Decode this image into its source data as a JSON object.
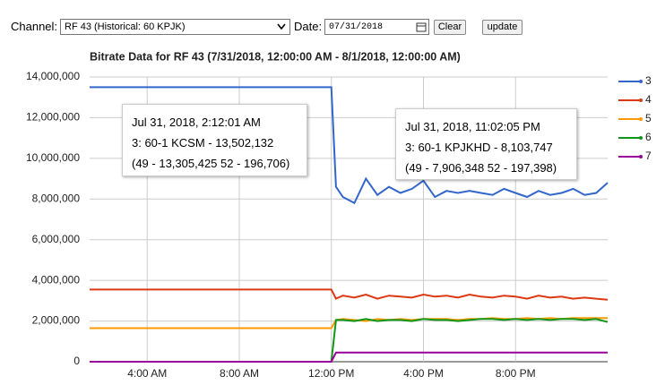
{
  "controls": {
    "channel_label": "Channel:",
    "channel_value": "RF 43 (Historical: 60 KPJK)",
    "date_label": "Date:",
    "date_value": "07/31/2018",
    "clear_button": "Clear",
    "update_button": "update"
  },
  "chart_data": {
    "type": "line",
    "title": "Bitrate Data for RF 43 (7/31/2018, 12:00:00 AM - 8/1/2018, 12:00:00 AM)",
    "x": [
      1.5,
      12,
      12.2,
      12.5,
      13,
      13.5,
      14,
      14.5,
      15,
      15.5,
      16,
      16.5,
      17,
      17.5,
      18,
      18.5,
      19,
      19.5,
      20,
      20.5,
      21,
      21.5,
      22,
      22.5,
      23,
      23.5,
      24
    ],
    "series": [
      {
        "name": "3",
        "color": "#3366cc",
        "values": [
          13500000,
          13500000,
          8600000,
          8100000,
          7800000,
          9000000,
          8200000,
          8600000,
          8300000,
          8500000,
          8900000,
          8100000,
          8400000,
          8300000,
          8400000,
          8300000,
          8200000,
          8500000,
          8300000,
          8100000,
          8400000,
          8200000,
          8300000,
          8500000,
          8200000,
          8300000,
          8800000
        ]
      },
      {
        "name": "4",
        "color": "#dc3912",
        "values": [
          3550000,
          3550000,
          3100000,
          3250000,
          3150000,
          3300000,
          3100000,
          3250000,
          3200000,
          3150000,
          3300000,
          3200000,
          3250000,
          3150000,
          3300000,
          3200000,
          3150000,
          3250000,
          3200000,
          3100000,
          3250000,
          3150000,
          3200000,
          3100000,
          3150000,
          3100000,
          3050000
        ]
      },
      {
        "name": "5",
        "color": "#ff9900",
        "values": [
          1650000,
          1650000,
          2050000,
          2100000,
          2050000,
          2000000,
          2100000,
          2050000,
          2100000,
          2050000,
          2100000,
          2100000,
          2100000,
          2050000,
          2100000,
          2100000,
          2150000,
          2100000,
          2100000,
          2150000,
          2100000,
          2150000,
          2100000,
          2150000,
          2150000,
          2150000,
          2150000
        ]
      },
      {
        "name": "6",
        "color": "#109618",
        "values": [
          0,
          0,
          2050000,
          2050000,
          2000000,
          2100000,
          2000000,
          2050000,
          2050000,
          2000000,
          2100000,
          2050000,
          2050000,
          2000000,
          2050000,
          2100000,
          2100000,
          2050000,
          2100000,
          2050000,
          2100000,
          2050000,
          2100000,
          2100000,
          2050000,
          2100000,
          1950000
        ]
      },
      {
        "name": "7",
        "color": "#990099",
        "values": [
          0,
          0,
          450000,
          450000,
          450000,
          450000,
          450000,
          450000,
          450000,
          450000,
          450000,
          450000,
          450000,
          450000,
          450000,
          450000,
          450000,
          450000,
          450000,
          450000,
          450000,
          450000,
          450000,
          450000,
          450000,
          450000,
          450000
        ]
      }
    ],
    "xlim": [
      1.5,
      24
    ],
    "xticks": [
      {
        "value": 4,
        "label": "4:00 AM"
      },
      {
        "value": 8,
        "label": "8:00 AM"
      },
      {
        "value": 12,
        "label": "12:00 PM"
      },
      {
        "value": 16,
        "label": "4:00 PM"
      },
      {
        "value": 20,
        "label": "8:00 PM"
      }
    ],
    "ylim": [
      0,
      14000000
    ],
    "yticks": [
      0,
      {
        "value": 2000000,
        "label": "2,000,000"
      },
      {
        "value": 4000000,
        "label": "4,000,000"
      },
      {
        "value": 6000000,
        "label": "6,000,000"
      },
      {
        "value": 8000000,
        "label": "8,000,000"
      },
      {
        "value": 10000000,
        "label": "10,000,000"
      },
      {
        "value": 12000000,
        "label": "12,000,000"
      },
      {
        "value": 14000000,
        "label": "14,000,000"
      }
    ],
    "grid": true,
    "legend": "right",
    "annotations": [
      {
        "title": "Jul 31, 2018, 2:12:01 AM",
        "line1": "3: 60-1 KCSM - 13,502,132",
        "line2": "(49 - 13,305,425 52 - 196,706)"
      },
      {
        "title": "Jul 31, 2018, 11:02:05 PM",
        "line1": "3: 60-1 KPJKHD - 8,103,747",
        "line2": "(49 - 7,906,348 52 - 197,398)"
      }
    ]
  }
}
